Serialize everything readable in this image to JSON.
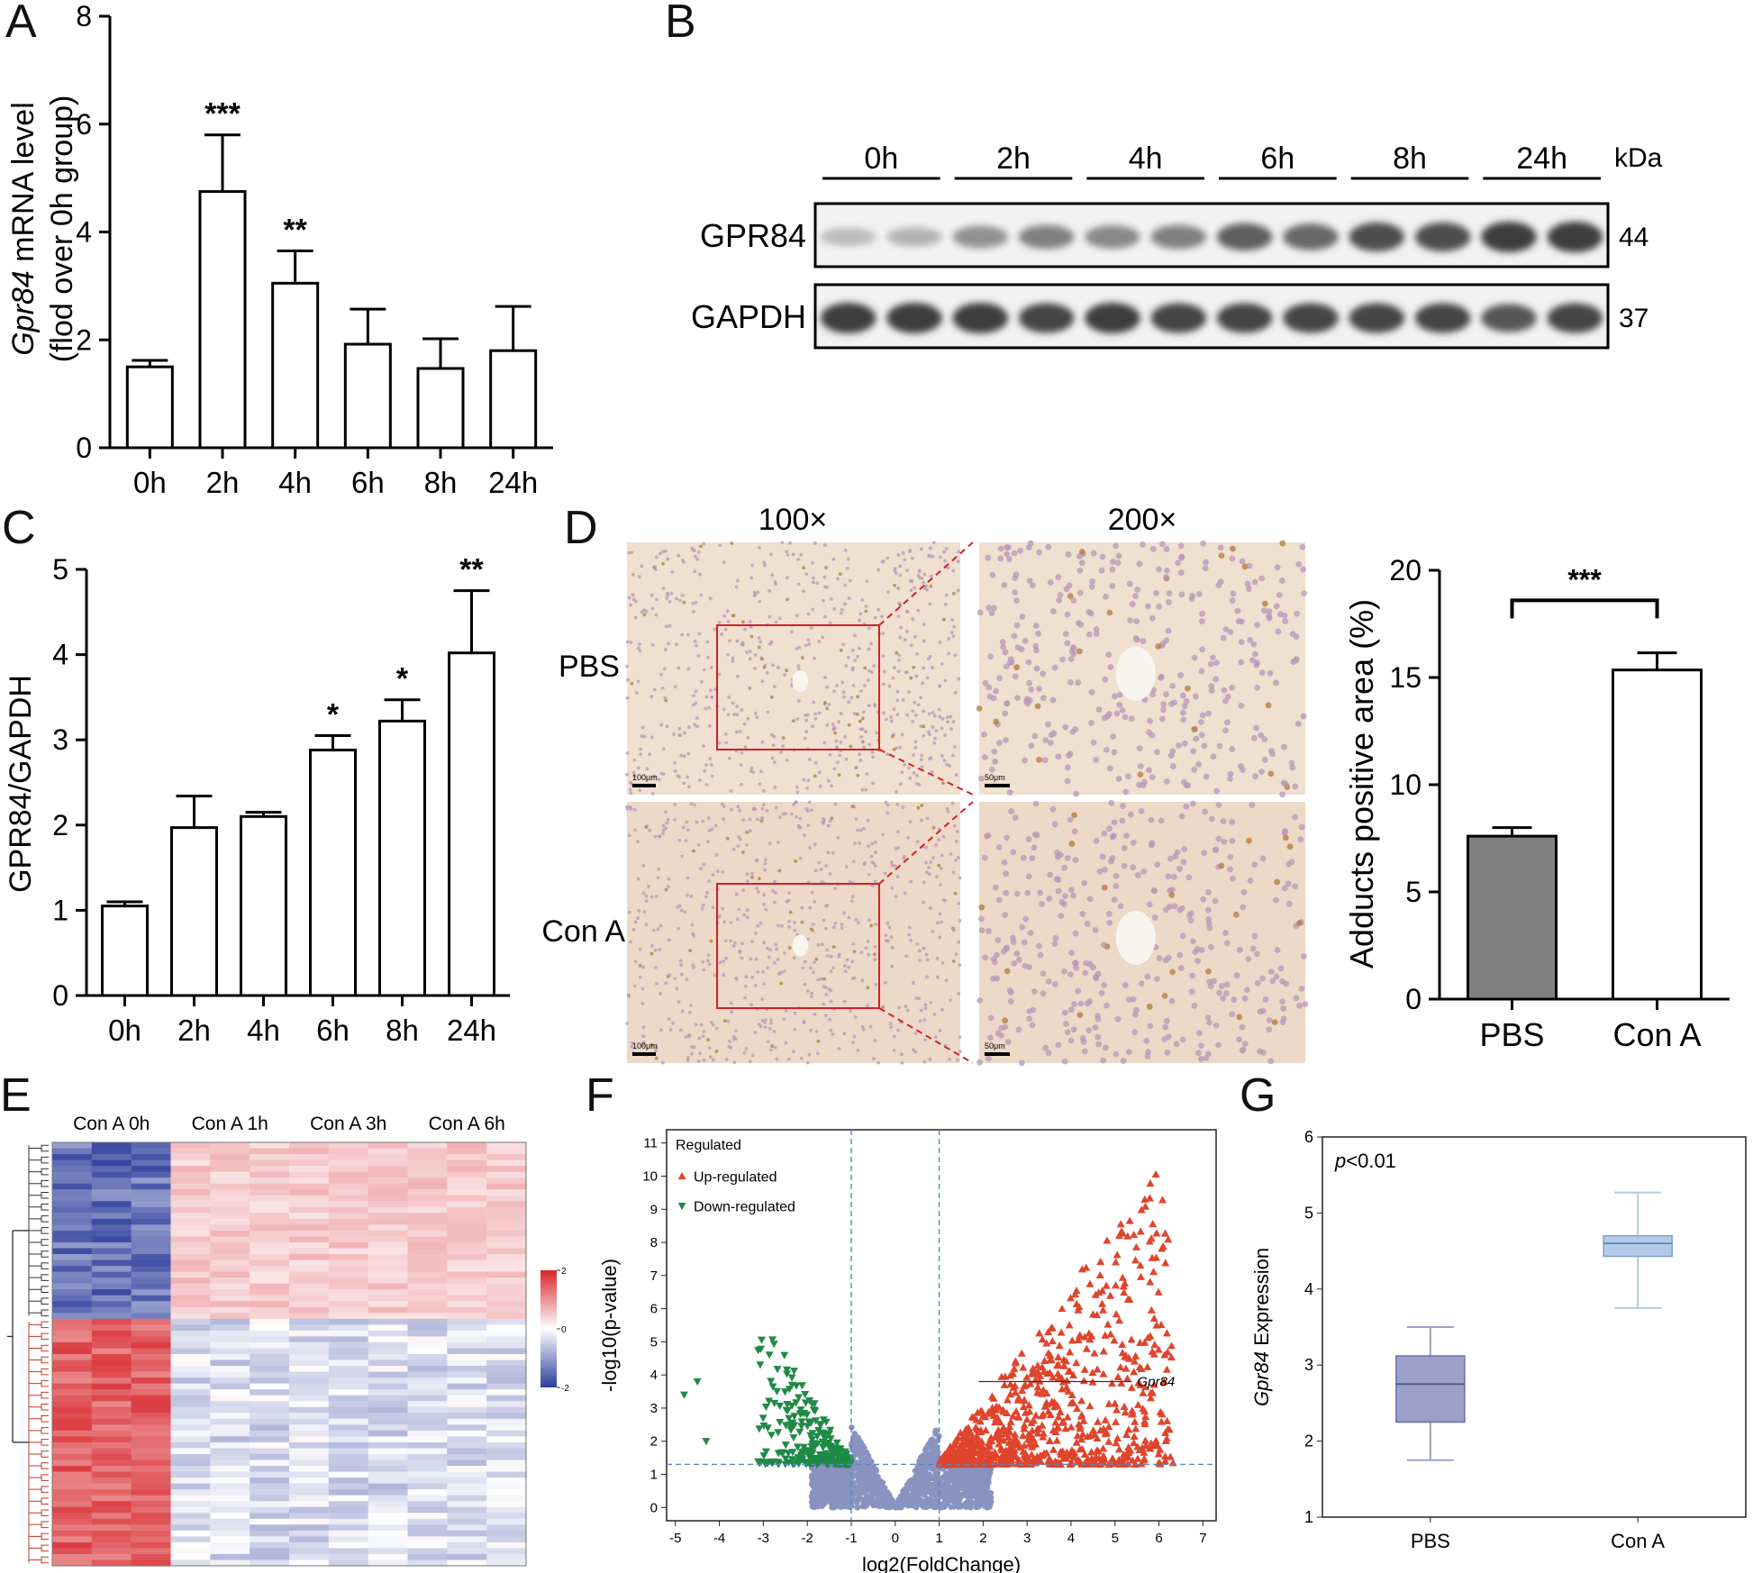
{
  "panels": {
    "A": {
      "letter": "A",
      "chart_data": {
        "type": "bar",
        "categories": [
          "0h",
          "2h",
          "4h",
          "6h",
          "8h",
          "24h"
        ],
        "values": [
          1.5,
          4.75,
          3.05,
          1.92,
          1.47,
          1.8
        ],
        "errors": [
          0.12,
          1.05,
          0.6,
          0.65,
          0.55,
          0.82
        ],
        "significance": [
          "",
          "***",
          "**",
          "",
          "",
          ""
        ],
        "ylabel_italic": "Gpr84",
        "ylabel_rest": " mRNA level",
        "ylabel_line2": "(flod over 0h group)",
        "ylim": [
          0,
          8
        ],
        "yticks": [
          0,
          2,
          4,
          6,
          8
        ]
      }
    },
    "B": {
      "letter": "B",
      "timepoints": [
        "0h",
        "2h",
        "4h",
        "6h",
        "8h",
        "24h"
      ],
      "unit_label": "kDa",
      "rows": [
        {
          "protein": "GPR84",
          "kda": "44",
          "band_darkness": [
            0.25,
            0.3,
            0.5,
            0.6,
            0.55,
            0.6,
            0.8,
            0.75,
            0.9,
            0.9,
            1.0,
            1.0
          ]
        },
        {
          "protein": "GAPDH",
          "kda": "37",
          "band_darkness": [
            1.0,
            1.0,
            1.0,
            0.95,
            1.0,
            0.95,
            0.95,
            0.95,
            0.95,
            0.95,
            0.85,
            0.95
          ]
        }
      ]
    },
    "C": {
      "letter": "C",
      "chart_data": {
        "type": "bar",
        "categories": [
          "0h",
          "2h",
          "4h",
          "6h",
          "8h",
          "24h"
        ],
        "values": [
          1.05,
          1.97,
          2.1,
          2.88,
          3.22,
          4.02
        ],
        "errors": [
          0.05,
          0.37,
          0.05,
          0.17,
          0.25,
          0.73
        ],
        "significance": [
          "",
          "",
          "",
          "*",
          "*",
          "**"
        ],
        "ylabel": "GPR84/GAPDH",
        "ylim": [
          0,
          5
        ],
        "yticks": [
          0,
          1,
          2,
          3,
          4,
          5
        ]
      }
    },
    "D": {
      "letter": "D",
      "magnifications": [
        "100×",
        "200×"
      ],
      "groups": [
        "PBS",
        "Con A"
      ],
      "scalebars": [
        "100μm",
        "50μm"
      ],
      "chart_data": {
        "type": "bar",
        "categories": [
          "PBS",
          "Con A"
        ],
        "values": [
          7.6,
          15.35
        ],
        "errors": [
          0.4,
          0.8
        ],
        "colors": [
          "#808080",
          "#ffffff"
        ],
        "significance": "***",
        "ylabel": "Adducts positive area (%)",
        "ylim": [
          0,
          20
        ],
        "yticks": [
          0,
          5,
          10,
          15,
          20
        ]
      }
    },
    "E": {
      "letter": "E",
      "chart_data": {
        "type": "heatmap",
        "column_groups": [
          "Con A 0h",
          "Con A 1h",
          "Con A 3h",
          "Con A 6h"
        ],
        "columns_per_group": 3,
        "rows": 72,
        "up_rows": 30,
        "colorbar_ticks": [
          "2",
          "0",
          "-2"
        ],
        "colors": {
          "high": "#d7262b",
          "mid": "#ffffff",
          "low": "#2b3c9b"
        }
      }
    },
    "F": {
      "letter": "F",
      "chart_data": {
        "type": "scatter",
        "xlabel": "log2(FoldChange)",
        "ylabel": "-log10(p-value)",
        "xlim": [
          -5.2,
          7.3
        ],
        "ylim": [
          -0.4,
          11.4
        ],
        "xticks": [
          -5,
          -4,
          -3,
          -2,
          -1,
          0,
          1,
          2,
          3,
          4,
          5,
          6,
          7
        ],
        "yticks": [
          0,
          1,
          2,
          3,
          4,
          5,
          6,
          7,
          8,
          9,
          10,
          11
        ],
        "fc_threshold": [
          -1,
          1
        ],
        "p_threshold": 1.3,
        "legend_title": "Regulated",
        "legend": [
          {
            "name": "Up-regulated",
            "color": "#e0442c"
          },
          {
            "name": "Down-regulated",
            "color": "#1f8a45"
          }
        ],
        "ns_color": "#8a93c0",
        "annotation": {
          "label": "Gpr84",
          "x": 1.9,
          "y": 3.8
        }
      }
    },
    "G": {
      "letter": "G",
      "pvalue_italic": "p",
      "pvalue_rest": "<0.01",
      "chart_data": {
        "type": "box",
        "categories": [
          "PBS",
          "Con A"
        ],
        "boxes": [
          {
            "min": 1.75,
            "q1": 2.25,
            "median": 2.75,
            "q3": 3.12,
            "max": 3.5,
            "color": "#9aa0c8"
          },
          {
            "min": 3.75,
            "q1": 4.43,
            "median": 4.6,
            "q3": 4.7,
            "max": 5.27,
            "color": "#b3cbe8"
          }
        ],
        "ylabel_italic": "Gpr84",
        "ylabel_rest": " Expression",
        "ylim": [
          1,
          6
        ],
        "yticks": [
          1,
          2,
          3,
          4,
          5,
          6
        ]
      }
    }
  }
}
